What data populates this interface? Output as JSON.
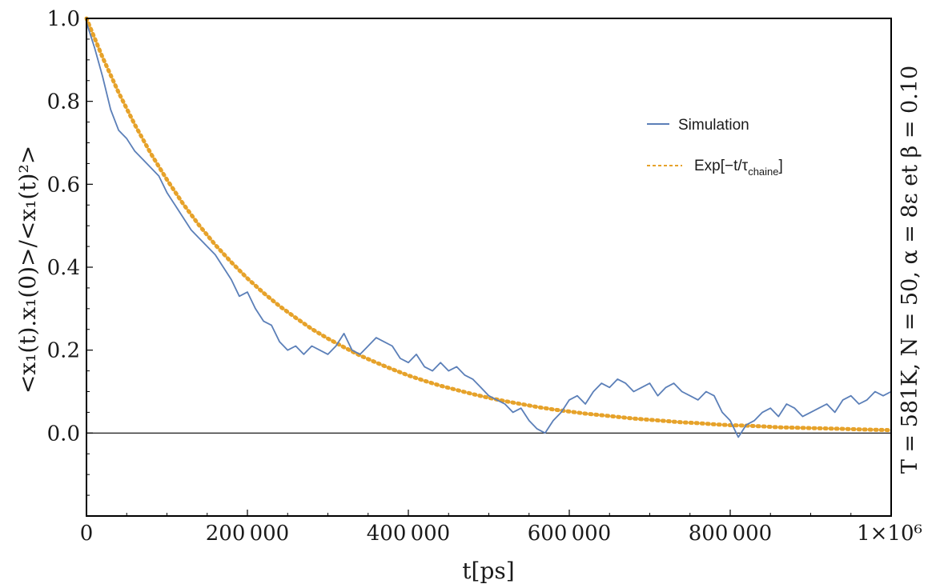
{
  "chart_data": {
    "type": "line",
    "xlabel": "t[ps]",
    "ylabel": "<x₁(t).x₁(0)>/<x₁(t)²>",
    "side_label": "T = 581K, N = 50, α = 8ε et β = 0.10",
    "xlim": [
      0,
      1000000
    ],
    "ylim": [
      -0.2,
      1.0
    ],
    "grid": false,
    "legend_position": "top-right",
    "x_ticks": [
      {
        "value": 0,
        "label": "0"
      },
      {
        "value": 200000,
        "label": "200 000"
      },
      {
        "value": 400000,
        "label": "400 000"
      },
      {
        "value": 600000,
        "label": "600 000"
      },
      {
        "value": 800000,
        "label": "800 000"
      },
      {
        "value": 1000000,
        "label": "1×10⁶"
      }
    ],
    "y_ticks": [
      {
        "value": 0.0,
        "label": "0.0"
      },
      {
        "value": 0.2,
        "label": "0.2"
      },
      {
        "value": 0.4,
        "label": "0.4"
      },
      {
        "value": 0.6,
        "label": "0.6"
      },
      {
        "value": 0.8,
        "label": "0.8"
      },
      {
        "value": 1.0,
        "label": "1.0"
      }
    ],
    "series": [
      {
        "name": "Simulation",
        "style": "solid",
        "color": "#5b7fb8",
        "x": [
          0,
          10000,
          20000,
          30000,
          40000,
          50000,
          60000,
          70000,
          80000,
          90000,
          100000,
          110000,
          120000,
          130000,
          140000,
          150000,
          160000,
          170000,
          180000,
          190000,
          200000,
          210000,
          220000,
          230000,
          240000,
          250000,
          260000,
          270000,
          280000,
          290000,
          300000,
          310000,
          320000,
          330000,
          340000,
          350000,
          360000,
          370000,
          380000,
          390000,
          400000,
          410000,
          420000,
          430000,
          440000,
          450000,
          460000,
          470000,
          480000,
          490000,
          500000,
          510000,
          520000,
          530000,
          540000,
          550000,
          560000,
          570000,
          580000,
          590000,
          600000,
          610000,
          620000,
          630000,
          640000,
          650000,
          660000,
          670000,
          680000,
          690000,
          700000,
          710000,
          720000,
          730000,
          740000,
          750000,
          760000,
          770000,
          780000,
          790000,
          800000,
          810000,
          820000,
          830000,
          840000,
          850000,
          860000,
          870000,
          880000,
          890000,
          900000,
          910000,
          920000,
          930000,
          940000,
          950000,
          960000,
          970000,
          980000,
          990000,
          1000000
        ],
        "y": [
          0.99,
          0.93,
          0.86,
          0.78,
          0.73,
          0.71,
          0.68,
          0.66,
          0.64,
          0.62,
          0.58,
          0.55,
          0.52,
          0.49,
          0.47,
          0.45,
          0.43,
          0.4,
          0.37,
          0.33,
          0.34,
          0.3,
          0.27,
          0.26,
          0.22,
          0.2,
          0.21,
          0.19,
          0.21,
          0.2,
          0.19,
          0.21,
          0.24,
          0.2,
          0.19,
          0.21,
          0.23,
          0.22,
          0.21,
          0.18,
          0.17,
          0.19,
          0.16,
          0.15,
          0.17,
          0.15,
          0.16,
          0.14,
          0.13,
          0.11,
          0.09,
          0.08,
          0.07,
          0.05,
          0.06,
          0.03,
          0.01,
          0.0,
          0.03,
          0.05,
          0.08,
          0.09,
          0.07,
          0.1,
          0.12,
          0.11,
          0.13,
          0.12,
          0.1,
          0.11,
          0.12,
          0.09,
          0.11,
          0.12,
          0.1,
          0.09,
          0.08,
          0.1,
          0.09,
          0.05,
          0.03,
          -0.01,
          0.02,
          0.03,
          0.05,
          0.06,
          0.04,
          0.07,
          0.06,
          0.04,
          0.05,
          0.06,
          0.07,
          0.05,
          0.08,
          0.09,
          0.07,
          0.08,
          0.1,
          0.09,
          0.1
        ]
      },
      {
        "name": "Exp[−t/τchaine]",
        "style": "dotted",
        "color": "#e6a22a",
        "x": [
          0,
          20000,
          40000,
          60000,
          80000,
          100000,
          120000,
          140000,
          160000,
          180000,
          200000,
          220000,
          240000,
          260000,
          280000,
          300000,
          320000,
          340000,
          360000,
          380000,
          400000,
          420000,
          440000,
          460000,
          480000,
          500000,
          520000,
          540000,
          560000,
          580000,
          600000,
          620000,
          640000,
          660000,
          680000,
          700000,
          720000,
          740000,
          760000,
          780000,
          800000,
          820000,
          840000,
          860000,
          880000,
          900000,
          920000,
          940000,
          960000,
          980000,
          1000000
        ],
        "y": [
          1.0,
          0.906,
          0.821,
          0.744,
          0.674,
          0.611,
          0.553,
          0.501,
          0.454,
          0.412,
          0.373,
          0.338,
          0.306,
          0.278,
          0.251,
          0.228,
          0.207,
          0.187,
          0.17,
          0.154,
          0.139,
          0.126,
          0.114,
          0.104,
          0.094,
          0.085,
          0.077,
          0.07,
          0.063,
          0.057,
          0.052,
          0.047,
          0.043,
          0.039,
          0.035,
          0.032,
          0.029,
          0.026,
          0.024,
          0.021,
          0.019,
          0.018,
          0.016,
          0.014,
          0.013,
          0.012,
          0.011,
          0.01,
          0.009,
          0.008,
          0.007
        ]
      }
    ]
  },
  "legend": {
    "simulation_label": "Simulation",
    "exp_label_prefix": "Exp[−t/τ",
    "exp_label_sub": "chaine",
    "exp_label_suffix": "]"
  }
}
